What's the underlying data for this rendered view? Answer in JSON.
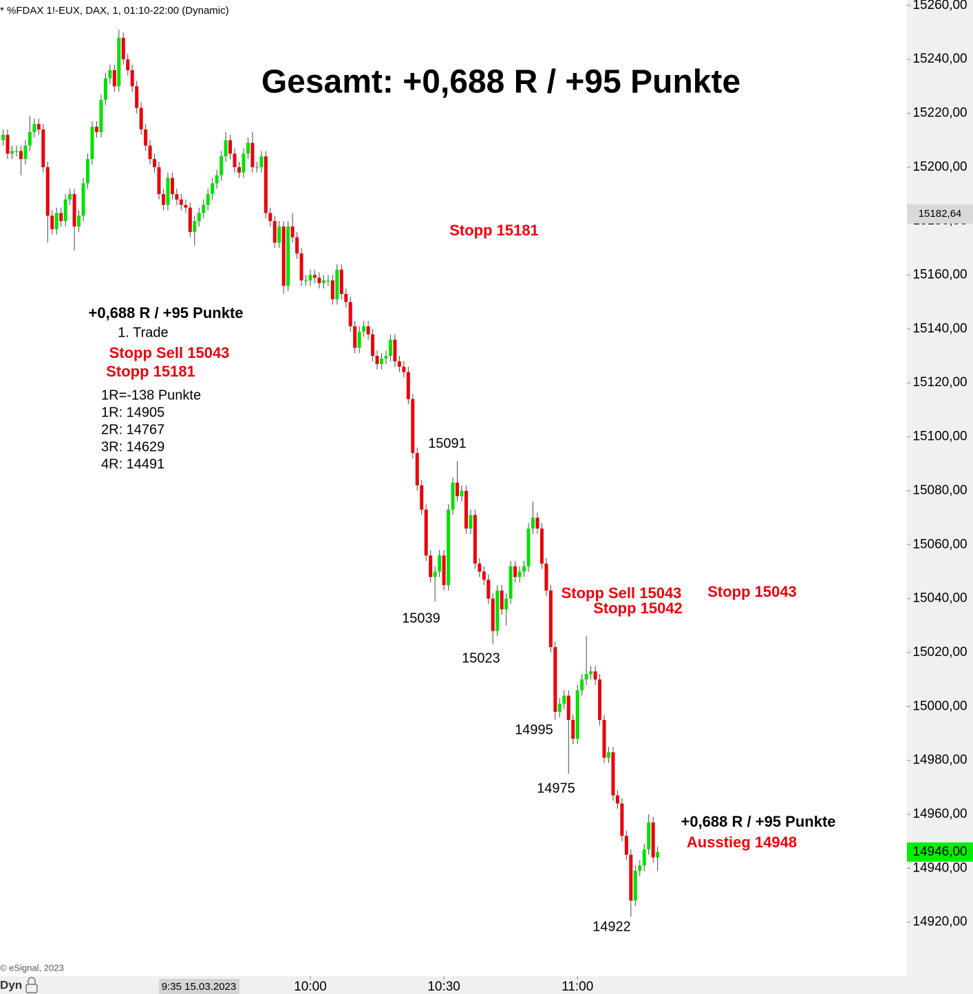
{
  "chart_data": {
    "type": "candlestick",
    "header": "* %FDAX 1!-EUX, DAX, 1, 01:10-22:00 (Dynamic)",
    "copyright": "© eSignal, 2023",
    "mode_label": "Dyn",
    "cursor_label": "9:35 15.03.2023",
    "up_color": "#00e000",
    "down_color": "#e8000b",
    "wick_color": "#444444",
    "x": [
      "8:51",
      "8:52",
      "8:53",
      "8:54",
      "8:55",
      "8:56",
      "8:57",
      "8:58",
      "8:59",
      "9:00",
      "9:01",
      "9:02",
      "9:03",
      "9:04",
      "9:05",
      "9:06",
      "9:07",
      "9:08",
      "9:09",
      "9:10",
      "9:11",
      "9:12",
      "9:13",
      "9:14",
      "9:15",
      "9:16",
      "9:17",
      "9:18",
      "9:19",
      "9:20",
      "9:21",
      "9:22",
      "9:23",
      "9:24",
      "9:25",
      "9:26",
      "9:27",
      "9:28",
      "9:29",
      "9:30",
      "9:31",
      "9:32",
      "9:33",
      "9:34",
      "9:35",
      "9:36",
      "9:37",
      "9:38",
      "9:39",
      "9:40",
      "9:41",
      "9:42",
      "9:43",
      "9:44",
      "9:45",
      "9:46",
      "9:47",
      "9:48",
      "9:49",
      "9:50",
      "9:51",
      "9:52",
      "9:53",
      "9:54",
      "9:55",
      "9:56",
      "9:57",
      "9:58",
      "9:59",
      "10:00",
      "10:01",
      "10:02",
      "10:03",
      "10:04",
      "10:05",
      "10:06",
      "10:07",
      "10:08",
      "10:09",
      "10:10",
      "10:11",
      "10:12",
      "10:13",
      "10:14",
      "10:15",
      "10:16",
      "10:17",
      "10:18",
      "10:19",
      "10:20",
      "10:21",
      "10:22",
      "10:23",
      "10:24",
      "10:25",
      "10:26",
      "10:27",
      "10:28",
      "10:29",
      "10:30",
      "10:31",
      "10:32",
      "10:33",
      "10:34",
      "10:35",
      "10:36",
      "10:37",
      "10:38",
      "10:39",
      "10:40",
      "10:41",
      "10:42",
      "10:43",
      "10:44",
      "10:45",
      "10:46",
      "10:47",
      "10:48",
      "10:49",
      "10:50",
      "10:51",
      "10:52",
      "10:53",
      "10:54",
      "10:55",
      "10:56",
      "10:57",
      "10:58",
      "10:59",
      "11:00",
      "11:01",
      "11:02",
      "11:03",
      "11:04",
      "11:05",
      "11:06",
      "11:07",
      "11:08",
      "11:09",
      "11:10",
      "11:11",
      "11:12",
      "11:13",
      "11:14",
      "11:15",
      "11:16",
      "11:17",
      "11:18"
    ],
    "open": [
      15210,
      15212,
      15205,
      15206,
      15206,
      15203,
      15208,
      15213,
      15216,
      15214,
      15200,
      15182,
      15177,
      15183,
      15180,
      15188,
      15190,
      15178,
      15182,
      15194,
      15203,
      15215,
      15213,
      15225,
      15233,
      15236,
      15230,
      15248,
      15240,
      15236,
      15230,
      15222,
      15214,
      15208,
      15203,
      15200,
      15190,
      15186,
      15196,
      15190,
      15188,
      15186,
      15185,
      15176,
      15180,
      15183,
      15186,
      15190,
      15194,
      15197,
      15204,
      15210,
      15205,
      15200,
      15198,
      15205,
      15209,
      15200,
      15200,
      15204,
      15183,
      15180,
      15172,
      15178,
      15156,
      15178,
      15174,
      15168,
      15158,
      15158,
      15160,
      15159,
      15157,
      15158,
      15158,
      15151,
      15162,
      15153,
      15150,
      15141,
      15133,
      15139,
      15141,
      15138,
      15130,
      15127,
      15129,
      15130,
      15136,
      15128,
      15126,
      15124,
      15114,
      15094,
      15082,
      15073,
      15056,
      15048,
      15050,
      15056,
      15045,
      15073,
      15083,
      15078,
      15080,
      15066,
      15071,
      15053,
      15050,
      15047,
      15040,
      15028,
      15043,
      15036,
      15040,
      15052,
      15048,
      15050,
      15052,
      15066,
      15070,
      15066,
      15053,
      15043,
      15022,
      14998,
      15001,
      15004,
      14995,
      14988,
      15006,
      15010,
      15012,
      15013,
      15010,
      14995,
      14981,
      14983,
      14967,
      14964,
      14952,
      14945,
      14928,
      14939,
      14941,
      14947,
      14957,
      14944
    ],
    "high": [
      15214,
      15214,
      15208,
      15208,
      15208,
      15210,
      15219,
      15218,
      15218,
      15216,
      15202,
      15184,
      15185,
      15185,
      15190,
      15192,
      15192,
      15184,
      15196,
      15205,
      15217,
      15217,
      15227,
      15235,
      15238,
      15238,
      15251,
      15250,
      15242,
      15238,
      15232,
      15224,
      15216,
      15210,
      15205,
      15202,
      15192,
      15198,
      15198,
      15192,
      15190,
      15188,
      15187,
      15182,
      15185,
      15188,
      15192,
      15196,
      15199,
      15206,
      15213,
      15212,
      15207,
      15202,
      15207,
      15211,
      15213,
      15202,
      15206,
      15206,
      15185,
      15182,
      15180,
      15180,
      15180,
      15183,
      15176,
      15170,
      15160,
      15162,
      15162,
      15161,
      15160,
      15160,
      15160,
      15164,
      15164,
      15155,
      15152,
      15143,
      15141,
      15143,
      15143,
      15140,
      15132,
      15131,
      15132,
      15138,
      15138,
      15130,
      15128,
      15126,
      15116,
      15096,
      15084,
      15075,
      15058,
      15052,
      15058,
      15058,
      15075,
      15085,
      15091,
      15082,
      15082,
      15073,
      15073,
      15055,
      15052,
      15049,
      15042,
      15045,
      15045,
      15042,
      15054,
      15054,
      15052,
      15054,
      15068,
      15076,
      15072,
      15068,
      15055,
      15045,
      15024,
      15003,
      15006,
      15006,
      14997,
      15008,
      15012,
      15026,
      15015,
      15015,
      15012,
      14997,
      14985,
      14985,
      14969,
      14966,
      14954,
      14947,
      14941,
      14943,
      14949,
      14960,
      14959,
      14948
    ],
    "low": [
      15208,
      15203,
      15203,
      15204,
      15197,
      15201,
      15206,
      15211,
      15212,
      15198,
      15172,
      15175,
      15175,
      15178,
      15178,
      15186,
      15169,
      15176,
      15180,
      15192,
      15201,
      15211,
      15211,
      15223,
      15231,
      15228,
      15228,
      15238,
      15234,
      15228,
      15220,
      15212,
      15206,
      15201,
      15198,
      15188,
      15184,
      15184,
      15188,
      15186,
      15184,
      15183,
      15174,
      15171,
      15178,
      15181,
      15184,
      15188,
      15192,
      15195,
      15202,
      15203,
      15198,
      15196,
      15196,
      15203,
      15198,
      15198,
      15198,
      15181,
      15178,
      15170,
      15170,
      15153,
      15154,
      15172,
      15166,
      15156,
      15156,
      15156,
      15157,
      15155,
      15155,
      15156,
      15149,
      15149,
      15151,
      15148,
      15139,
      15131,
      15131,
      15137,
      15136,
      15128,
      15125,
      15125,
      15127,
      15128,
      15126,
      15124,
      15122,
      15112,
      15092,
      15080,
      15071,
      15054,
      15046,
      15039,
      15048,
      15043,
      15043,
      15071,
      15076,
      15076,
      15064,
      15064,
      15051,
      15048,
      15045,
      15038,
      15023,
      15026,
      15034,
      15030,
      15038,
      15046,
      15046,
      15048,
      15050,
      15064,
      15064,
      15051,
      15041,
      15020,
      14995,
      14996,
      14999,
      14975,
      14986,
      14986,
      15004,
      15008,
      15010,
      15008,
      14993,
      14979,
      14979,
      14965,
      14962,
      14950,
      14943,
      14922,
      14926,
      14937,
      14939,
      14945,
      14942,
      14939
    ],
    "close": [
      15212,
      15205,
      15206,
      15206,
      15203,
      15208,
      15213,
      15216,
      15214,
      15200,
      15182,
      15177,
      15183,
      15180,
      15188,
      15190,
      15178,
      15182,
      15194,
      15203,
      15215,
      15213,
      15225,
      15233,
      15236,
      15230,
      15248,
      15240,
      15236,
      15230,
      15222,
      15214,
      15208,
      15203,
      15200,
      15190,
      15186,
      15196,
      15190,
      15188,
      15186,
      15185,
      15176,
      15180,
      15183,
      15186,
      15190,
      15194,
      15197,
      15204,
      15210,
      15205,
      15200,
      15198,
      15205,
      15209,
      15200,
      15200,
      15204,
      15183,
      15180,
      15172,
      15178,
      15156,
      15178,
      15174,
      15168,
      15158,
      15158,
      15160,
      15159,
      15157,
      15158,
      15158,
      15151,
      15162,
      15153,
      15150,
      15141,
      15133,
      15139,
      15141,
      15138,
      15130,
      15127,
      15129,
      15130,
      15136,
      15128,
      15126,
      15124,
      15114,
      15094,
      15082,
      15073,
      15056,
      15048,
      15050,
      15056,
      15045,
      15073,
      15083,
      15078,
      15080,
      15066,
      15071,
      15053,
      15050,
      15047,
      15040,
      15028,
      15043,
      15036,
      15040,
      15052,
      15048,
      15050,
      15052,
      15066,
      15070,
      15066,
      15053,
      15043,
      15022,
      14998,
      15001,
      15004,
      14995,
      14988,
      15006,
      15010,
      15012,
      15013,
      15010,
      14995,
      14981,
      14983,
      14967,
      14964,
      14952,
      14945,
      14928,
      14939,
      14941,
      14947,
      14957,
      14944,
      14946
    ],
    "xticks": [
      "10:00",
      "10:30",
      "11:00"
    ],
    "ylim": [
      14900,
      15262
    ],
    "yticks": [
      {
        "value": 15260,
        "label": "15260,00"
      },
      {
        "value": 15240,
        "label": "15240,00"
      },
      {
        "value": 15220,
        "label": "15220,00"
      },
      {
        "value": 15200,
        "label": "15200,00"
      },
      {
        "value": 15180,
        "label": "15180,00"
      },
      {
        "value": 15160,
        "label": "15160,00"
      },
      {
        "value": 15140,
        "label": "15140,00"
      },
      {
        "value": 15120,
        "label": "15120,00"
      },
      {
        "value": 15100,
        "label": "15100,00"
      },
      {
        "value": 15080,
        "label": "15080,00"
      },
      {
        "value": 15060,
        "label": "15060,00"
      },
      {
        "value": 15040,
        "label": "15040,00"
      },
      {
        "value": 15020,
        "label": "15020,00"
      },
      {
        "value": 15000,
        "label": "15000,00"
      },
      {
        "value": 14980,
        "label": "14980,00"
      },
      {
        "value": 14960,
        "label": "14960,00"
      },
      {
        "value": 14940,
        "label": "14940,00"
      },
      {
        "value": 14920,
        "label": "14920,00"
      }
    ],
    "price_markers": [
      {
        "value": 15182.64,
        "label": "15182,64",
        "color": "#d9d9d9"
      },
      {
        "value": 14946,
        "label": "14946,00",
        "color": "#00ee00"
      }
    ],
    "annotations": [
      {
        "text": "Gesamt: +0,688 R / +95 Punkte",
        "color": "#000000",
        "bold": true
      },
      {
        "text": "Stopp 15181",
        "color": "#e8000b",
        "bold": true
      },
      {
        "text": "+0,688 R / +95 Punkte",
        "color": "#000000",
        "bold": true
      },
      {
        "text": "1. Trade",
        "color": "#000000",
        "bold": false
      },
      {
        "text": "Stopp Sell 15043",
        "color": "#e8000b",
        "bold": true
      },
      {
        "text": "Stopp 15181",
        "color": "#e8000b",
        "bold": true
      },
      {
        "text": "1R=-138 Punkte",
        "color": "#000000",
        "bold": false
      },
      {
        "text": "1R: 14905",
        "color": "#000000",
        "bold": false
      },
      {
        "text": "2R: 14767",
        "color": "#000000",
        "bold": false
      },
      {
        "text": "3R: 14629",
        "color": "#000000",
        "bold": false
      },
      {
        "text": "4R: 14491",
        "color": "#000000",
        "bold": false
      },
      {
        "text": "15091",
        "color": "#000000",
        "bold": false
      },
      {
        "text": "15039",
        "color": "#000000",
        "bold": false
      },
      {
        "text": "15023",
        "color": "#000000",
        "bold": false
      },
      {
        "text": "14995",
        "color": "#000000",
        "bold": false
      },
      {
        "text": "14975",
        "color": "#000000",
        "bold": false
      },
      {
        "text": "14922",
        "color": "#000000",
        "bold": false
      },
      {
        "text": "Stopp Sell 15043",
        "color": "#e8000b",
        "bold": true
      },
      {
        "text": "Stopp 15042",
        "color": "#e8000b",
        "bold": true
      },
      {
        "text": "Stopp 15043",
        "color": "#e8000b",
        "bold": true
      },
      {
        "text": "+0,688 R / +95 Punkte",
        "color": "#000000",
        "bold": true
      },
      {
        "text": "Ausstieg 14948",
        "color": "#e8000b",
        "bold": true
      }
    ]
  }
}
